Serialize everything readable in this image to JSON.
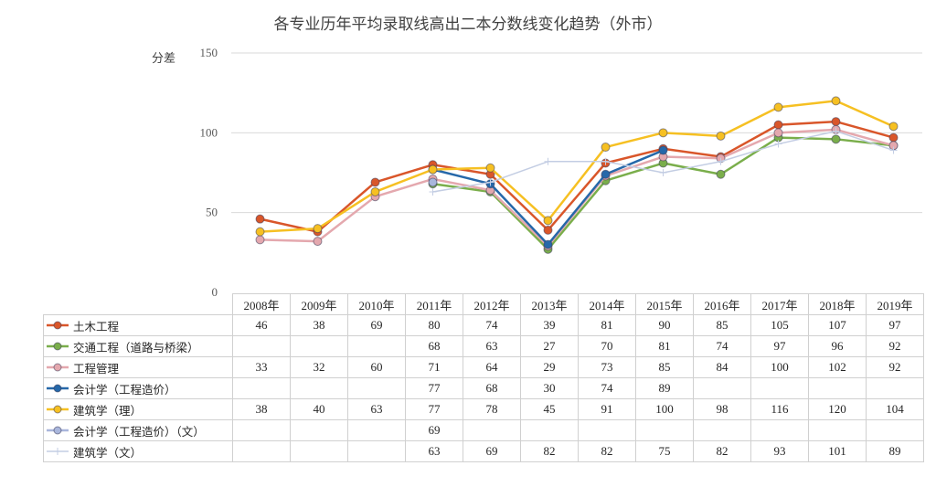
{
  "chart_data": {
    "type": "line",
    "title": "各专业历年平均录取线高出二本分数线变化趋势（外市）",
    "ylabel": "分差",
    "xlabel": "",
    "ylim": [
      0,
      150
    ],
    "yticks": [
      "0",
      "50",
      "100",
      "150"
    ],
    "grid": true,
    "legend": "data-table",
    "categories": [
      "2008年",
      "2009年",
      "2010年",
      "2011年",
      "2012年",
      "2013年",
      "2014年",
      "2015年",
      "2016年",
      "2017年",
      "2018年",
      "2019年"
    ],
    "series": [
      {
        "name": "土木工程",
        "color": "#d9562a",
        "marker": "circle",
        "values": [
          46,
          38,
          69,
          80,
          74,
          39,
          81,
          90,
          85,
          105,
          107,
          97
        ]
      },
      {
        "name": "交通工程（道路与桥梁）",
        "color": "#7aae4b",
        "marker": "circle",
        "values": [
          null,
          null,
          null,
          68,
          63,
          27,
          70,
          81,
          74,
          97,
          96,
          92
        ]
      },
      {
        "name": "工程管理",
        "color": "#e4a8ae",
        "marker": "circle",
        "values": [
          33,
          32,
          60,
          71,
          64,
          29,
          73,
          85,
          84,
          100,
          102,
          92
        ]
      },
      {
        "name": "会计学（工程造价）",
        "color": "#2668a9",
        "marker": "circle",
        "values": [
          null,
          null,
          null,
          77,
          68,
          30,
          74,
          89,
          null,
          null,
          null,
          null
        ]
      },
      {
        "name": "建筑学（理）",
        "color": "#f6c022",
        "marker": "circle",
        "values": [
          38,
          40,
          63,
          77,
          78,
          45,
          91,
          100,
          98,
          116,
          120,
          104
        ]
      },
      {
        "name": "会计学（工程造价）（文）",
        "color": "#a9b6dc",
        "marker": "circle",
        "values": [
          null,
          null,
          null,
          69,
          null,
          null,
          null,
          null,
          null,
          null,
          null,
          null
        ]
      },
      {
        "name": "建筑学（文）",
        "color": "#c3cde3",
        "marker": "plus",
        "values": [
          null,
          null,
          null,
          63,
          69,
          82,
          82,
          75,
          82,
          93,
          101,
          89
        ]
      }
    ]
  }
}
